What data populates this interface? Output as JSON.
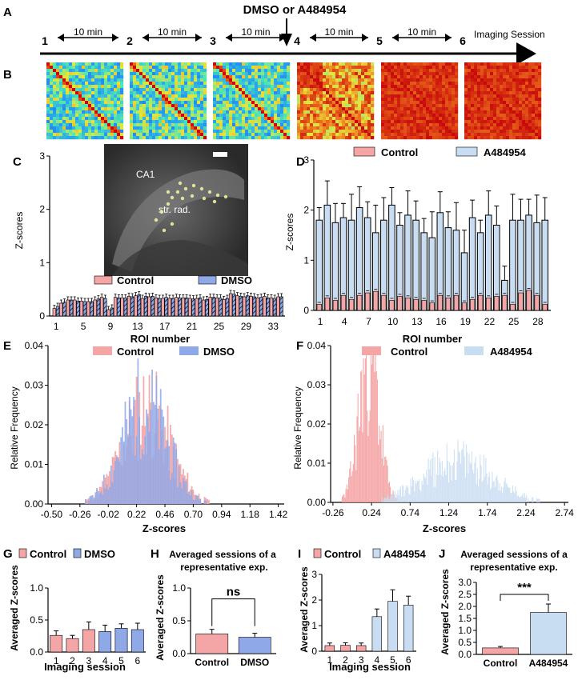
{
  "panel_letters": [
    "A",
    "B",
    "C",
    "D",
    "E",
    "F",
    "G",
    "H",
    "I",
    "J"
  ],
  "timeline": {
    "treatment_label": "DMSO or A484954",
    "sessions": [
      "1",
      "2",
      "3",
      "4",
      "5",
      "6"
    ],
    "interval_label": "10 min",
    "end_label": "Imaging Session"
  },
  "micrograph": {
    "region_label": "CA1",
    "layer_label": "str. rad."
  },
  "labels": {
    "zscores": "Z-scores",
    "roi_number": "ROI number",
    "relative_frequency": "Relative Frequency",
    "averaged_zscores": "Averaged Z-scores",
    "imaging_session": "Imaging session",
    "averaged_sessions_title": "Averaged sessions of a representative exp.",
    "ns": "ns",
    "sig": "***"
  },
  "legend": {
    "control": "Control",
    "dmso": "DMSO",
    "a484954": "A484954"
  },
  "colors": {
    "control": "#f4a6a6",
    "dmso": "#8fa8e8",
    "a484954": "#c9ddf2",
    "axis": "#000000"
  },
  "chart_data": [
    {
      "id": "C",
      "type": "bar",
      "title": "",
      "xlabel": "ROI number",
      "ylabel": "Z-scores",
      "ylim": [
        0,
        3
      ],
      "yticks": [
        0,
        1,
        2,
        3
      ],
      "xticks": [
        "1",
        "5",
        "9",
        "13",
        "17",
        "21",
        "25",
        "29",
        "33"
      ],
      "series": [
        {
          "name": "Control",
          "values": [
            0.14,
            0.24,
            0.3,
            0.3,
            0.28,
            0.27,
            0.3,
            0.35,
            0.12,
            0.35,
            0.34,
            0.37,
            0.38,
            0.33,
            0.36,
            0.34,
            0.33,
            0.33,
            0.35,
            0.34,
            0.33,
            0.33,
            0.3,
            0.35,
            0.34,
            0.31,
            0.42,
            0.38,
            0.36,
            0.37,
            0.34,
            0.37,
            0.34,
            0.36
          ]
        },
        {
          "name": "DMSO",
          "values": [
            0.18,
            0.26,
            0.3,
            0.28,
            0.27,
            0.27,
            0.32,
            0.33,
            0.15,
            0.34,
            0.34,
            0.36,
            0.4,
            0.37,
            0.37,
            0.33,
            0.35,
            0.33,
            0.34,
            0.34,
            0.32,
            0.34,
            0.31,
            0.35,
            0.34,
            0.33,
            0.41,
            0.37,
            0.38,
            0.36,
            0.35,
            0.34,
            0.33,
            0.36
          ]
        }
      ]
    },
    {
      "id": "D",
      "type": "bar",
      "title": "",
      "xlabel": "ROI number",
      "ylabel": "Z-scores",
      "ylim": [
        0,
        3
      ],
      "yticks": [
        0,
        1,
        2,
        3
      ],
      "xticks": [
        "1",
        "4",
        "7",
        "10",
        "13",
        "16",
        "19",
        "22",
        "25",
        "28"
      ],
      "series": [
        {
          "name": "Control",
          "values": [
            0.12,
            0.25,
            0.2,
            0.3,
            0.22,
            0.3,
            0.35,
            0.38,
            0.3,
            0.2,
            0.28,
            0.25,
            0.22,
            0.2,
            0.15,
            0.3,
            0.25,
            0.3,
            0.15,
            0.22,
            0.3,
            0.25,
            0.28,
            0.3,
            0.12,
            0.35,
            0.4,
            0.3,
            0.12
          ]
        },
        {
          "name": "A484954",
          "values": [
            1.8,
            2.1,
            1.75,
            1.85,
            1.8,
            2.05,
            1.85,
            1.55,
            1.8,
            2.1,
            1.7,
            1.9,
            1.8,
            1.55,
            1.45,
            1.95,
            1.65,
            1.6,
            1.15,
            1.85,
            1.55,
            1.9,
            1.7,
            0.6,
            1.8,
            1.8,
            1.9,
            1.75,
            1.8
          ]
        }
      ]
    },
    {
      "id": "E",
      "type": "bar",
      "title": "",
      "xlabel": "Z-scores",
      "ylabel": "Relative Frequency",
      "ylim": [
        0,
        0.04
      ],
      "yticks": [
        0.0,
        0.01,
        0.02,
        0.03,
        0.04
      ],
      "xticks": [
        -0.5,
        -0.26,
        -0.02,
        0.22,
        0.46,
        0.7,
        0.94,
        1.18,
        1.42
      ],
      "series": [
        {
          "name": "Control",
          "mean": 0.3,
          "sd": 0.2
        },
        {
          "name": "DMSO",
          "mean": 0.28,
          "sd": 0.19
        }
      ]
    },
    {
      "id": "F",
      "type": "bar",
      "title": "",
      "xlabel": "Z-scores",
      "ylabel": "Relative Frequency",
      "ylim": [
        0,
        0.04
      ],
      "yticks": [
        0.0,
        0.01,
        0.02,
        0.03,
        0.04
      ],
      "xticks": [
        -0.26,
        0.24,
        0.74,
        1.24,
        1.74,
        2.24,
        2.74
      ],
      "series": [
        {
          "name": "Control",
          "mean": 0.2,
          "sd": 0.13
        },
        {
          "name": "A484954",
          "mean": 1.35,
          "sd": 0.45
        }
      ]
    },
    {
      "id": "G",
      "type": "bar",
      "xlabel": "Imaging session",
      "ylabel": "Averaged Z-scores",
      "ylim": [
        0,
        1.0
      ],
      "yticks": [
        "0.0",
        "0.5",
        "1.0"
      ],
      "categories": [
        "1",
        "2",
        "3",
        "4",
        "5",
        "6"
      ],
      "values": [
        0.26,
        0.21,
        0.35,
        0.32,
        0.37,
        0.35
      ],
      "errors": [
        0.07,
        0.05,
        0.12,
        0.1,
        0.07,
        0.1
      ],
      "groups": [
        "Control",
        "Control",
        "Control",
        "DMSO",
        "DMSO",
        "DMSO"
      ]
    },
    {
      "id": "H",
      "type": "bar",
      "title": "Averaged sessions of a representative exp.",
      "ylabel": "Averaged Z-scores",
      "ylim": [
        0,
        1.0
      ],
      "yticks": [
        "0.0",
        "0.5",
        "1.0"
      ],
      "categories": [
        "Control",
        "DMSO"
      ],
      "values": [
        0.3,
        0.25
      ],
      "errors": [
        0.07,
        0.06
      ],
      "annotation": "ns"
    },
    {
      "id": "I",
      "type": "bar",
      "xlabel": "Imaging session",
      "ylabel": "Averaged Z-scores",
      "ylim": [
        0,
        3
      ],
      "yticks": [
        "0",
        "1",
        "2",
        "3"
      ],
      "categories": [
        "1",
        "2",
        "3",
        "4",
        "5",
        "6"
      ],
      "values": [
        0.22,
        0.23,
        0.22,
        1.35,
        1.95,
        1.8
      ],
      "errors": [
        0.1,
        0.1,
        0.1,
        0.3,
        0.45,
        0.35
      ],
      "groups": [
        "Control",
        "Control",
        "Control",
        "A484954",
        "A484954",
        "A484954"
      ]
    },
    {
      "id": "J",
      "type": "bar",
      "title": "Averaged sessions of a representative exp.",
      "ylabel": "Averaged Z-scores",
      "ylim": [
        0,
        3.0
      ],
      "yticks": [
        "0.0",
        "0.5",
        "1.0",
        "1.5",
        "2.0",
        "2.5",
        "3.0"
      ],
      "categories": [
        "Control",
        "A484954"
      ],
      "values": [
        0.27,
        1.75
      ],
      "errors": [
        0.06,
        0.35
      ],
      "annotation": "***"
    }
  ]
}
